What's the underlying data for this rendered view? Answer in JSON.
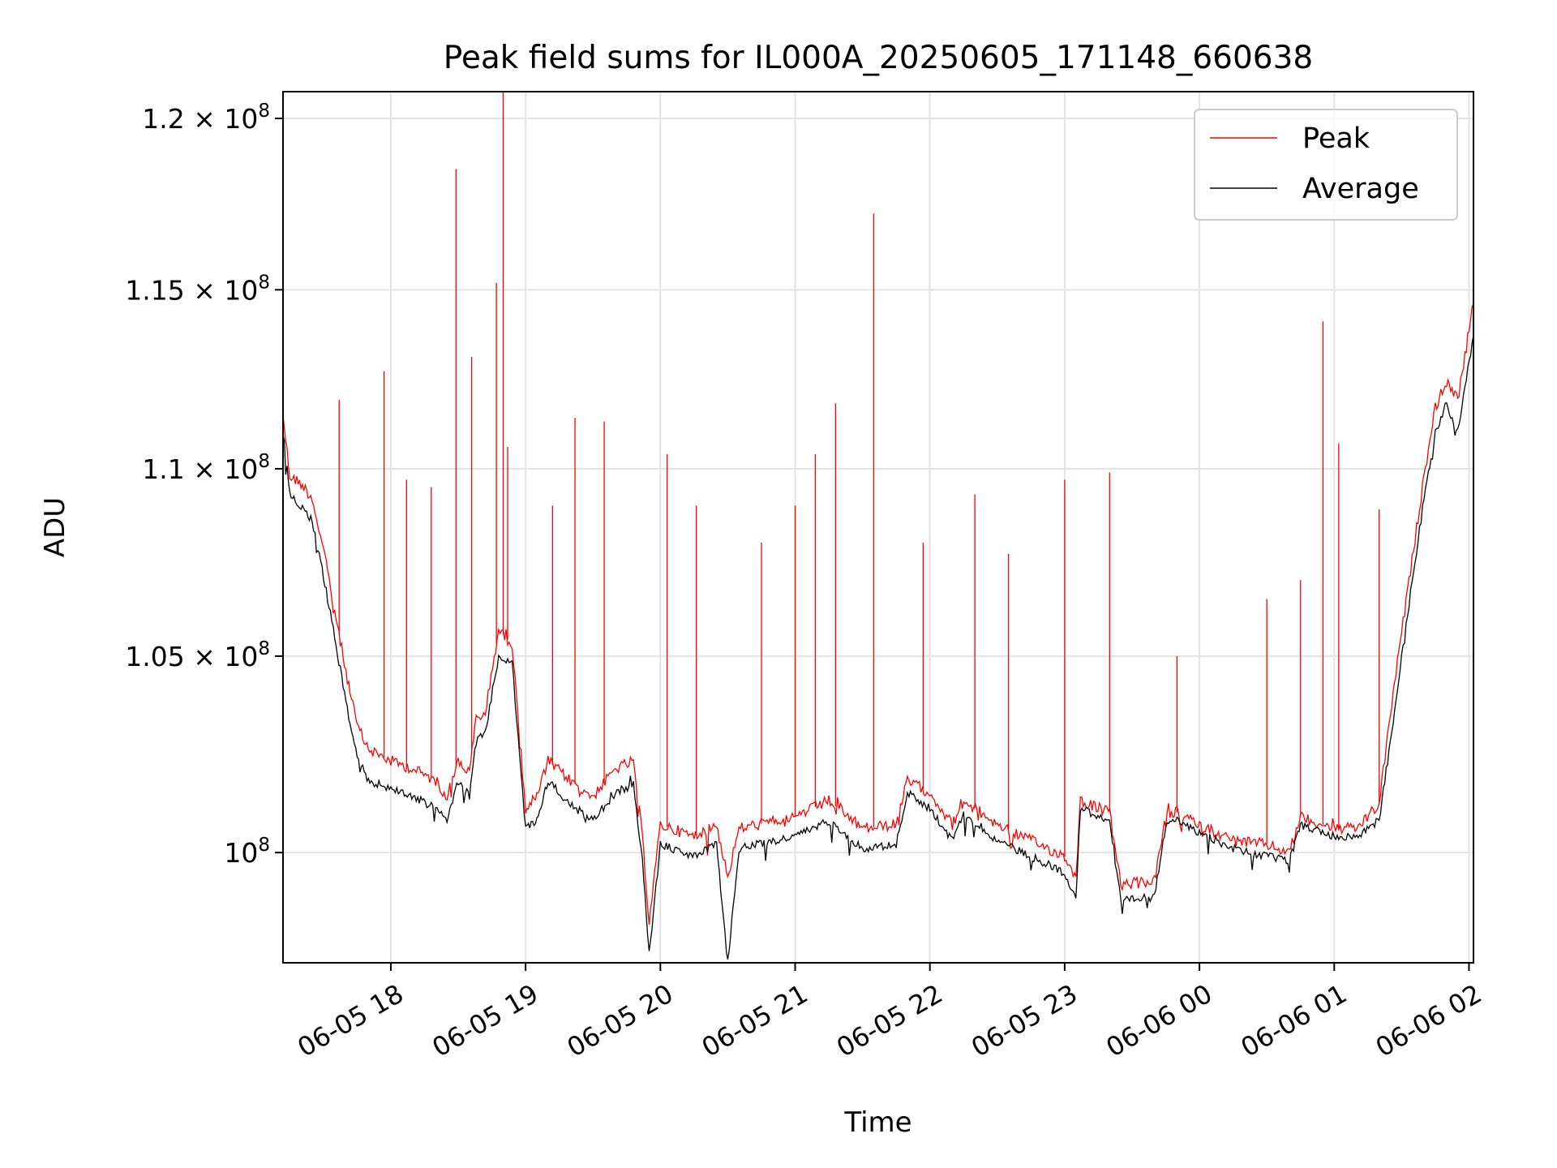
{
  "chart_data": {
    "type": "line",
    "title": "Peak field sums for IL000A_20250605_171148_660638",
    "xlabel": "Time",
    "ylabel": "ADU",
    "y_scale": "log",
    "xlim": [
      "2025-06-05T17:12",
      "2025-06-06T02:02"
    ],
    "ylim": [
      97300000,
      120800000
    ],
    "grid": true,
    "legend_position": "top-right",
    "x_ticks": [
      {
        "t": "2025-06-05T18:00",
        "label": "06-05 18"
      },
      {
        "t": "2025-06-05T19:00",
        "label": "06-05 19"
      },
      {
        "t": "2025-06-05T20:00",
        "label": "06-05 20"
      },
      {
        "t": "2025-06-05T21:00",
        "label": "06-05 21"
      },
      {
        "t": "2025-06-05T22:00",
        "label": "06-05 22"
      },
      {
        "t": "2025-06-05T23:00",
        "label": "06-05 23"
      },
      {
        "t": "2025-06-06T00:00",
        "label": "06-06 00"
      },
      {
        "t": "2025-06-06T01:00",
        "label": "06-06 01"
      },
      {
        "t": "2025-06-06T02:00",
        "label": "06-06 02"
      }
    ],
    "y_ticks": [
      {
        "value": 100000000,
        "mant": "10",
        "exp": "8"
      },
      {
        "value": 105000000,
        "mant": "1.05 × 10",
        "exp": "8"
      },
      {
        "value": 110000000,
        "mant": "1.1 × 10",
        "exp": "8"
      },
      {
        "value": 115000000,
        "mant": "1.15 × 10",
        "exp": "8"
      },
      {
        "value": 120000000,
        "mant": "1.2 × 10",
        "exp": "8"
      }
    ],
    "series": [
      {
        "name": "Peak",
        "color": "#ff0000",
        "baseline": [
          [
            "2025-06-05T17:12",
            111500000
          ],
          [
            "2025-06-05T17:15",
            109800000
          ],
          [
            "2025-06-05T17:20",
            109600000
          ],
          [
            "2025-06-05T17:25",
            109200000
          ],
          [
            "2025-06-05T17:30",
            107800000
          ],
          [
            "2025-06-05T17:35",
            106200000
          ],
          [
            "2025-06-05T17:40",
            104600000
          ],
          [
            "2025-06-05T17:45",
            103200000
          ],
          [
            "2025-06-05T17:50",
            102600000
          ],
          [
            "2025-06-05T18:00",
            102300000
          ],
          [
            "2025-06-05T18:10",
            102100000
          ],
          [
            "2025-06-05T18:20",
            101800000
          ],
          [
            "2025-06-05T18:25",
            101400000
          ],
          [
            "2025-06-05T18:30",
            102300000
          ],
          [
            "2025-06-05T18:35",
            102000000
          ],
          [
            "2025-06-05T18:38",
            103400000
          ],
          [
            "2025-06-05T18:42",
            103500000
          ],
          [
            "2025-06-05T18:48",
            105700000
          ],
          [
            "2025-06-05T18:54",
            105300000
          ],
          [
            "2025-06-05T19:00",
            101100000
          ],
          [
            "2025-06-05T19:05",
            101400000
          ],
          [
            "2025-06-05T19:10",
            102300000
          ],
          [
            "2025-06-05T19:20",
            101800000
          ],
          [
            "2025-06-05T19:30",
            101400000
          ],
          [
            "2025-06-05T19:40",
            102100000
          ],
          [
            "2025-06-05T19:48",
            102300000
          ],
          [
            "2025-06-05T19:52",
            100400000
          ],
          [
            "2025-06-05T19:55",
            98300000
          ],
          [
            "2025-06-05T20:00",
            100700000
          ],
          [
            "2025-06-05T20:15",
            100400000
          ],
          [
            "2025-06-05T20:25",
            100700000
          ],
          [
            "2025-06-05T20:30",
            99400000
          ],
          [
            "2025-06-05T20:35",
            100600000
          ],
          [
            "2025-06-05T21:00",
            100900000
          ],
          [
            "2025-06-05T21:15",
            101300000
          ],
          [
            "2025-06-05T21:30",
            100600000
          ],
          [
            "2025-06-05T21:45",
            100700000
          ],
          [
            "2025-06-05T21:50",
            101800000
          ],
          [
            "2025-06-05T22:00",
            101500000
          ],
          [
            "2025-06-05T22:10",
            100700000
          ],
          [
            "2025-06-05T22:15",
            101300000
          ],
          [
            "2025-06-05T22:30",
            100700000
          ],
          [
            "2025-06-05T22:45",
            100300000
          ],
          [
            "2025-06-05T23:00",
            99900000
          ],
          [
            "2025-06-05T23:05",
            99400000
          ],
          [
            "2025-06-05T23:07",
            101300000
          ],
          [
            "2025-06-05T23:20",
            101000000
          ],
          [
            "2025-06-05T23:25",
            99200000
          ],
          [
            "2025-06-05T23:40",
            99300000
          ],
          [
            "2025-06-05T23:45",
            100900000
          ],
          [
            "2025-06-05T23:50",
            101000000
          ],
          [
            "2025-06-06T00:00",
            100700000
          ],
          [
            "2025-06-06T00:15",
            100300000
          ],
          [
            "2025-06-06T00:30",
            100200000
          ],
          [
            "2025-06-06T00:40",
            100000000
          ],
          [
            "2025-06-06T00:45",
            100900000
          ],
          [
            "2025-06-06T01:00",
            100600000
          ],
          [
            "2025-06-06T01:10",
            100600000
          ],
          [
            "2025-06-06T01:20",
            101200000
          ],
          [
            "2025-06-06T01:25",
            103500000
          ],
          [
            "2025-06-06T01:30",
            105600000
          ],
          [
            "2025-06-06T01:40",
            109800000
          ],
          [
            "2025-06-06T01:45",
            111700000
          ],
          [
            "2025-06-06T01:50",
            112400000
          ],
          [
            "2025-06-06T01:55",
            111900000
          ],
          [
            "2025-06-06T02:02",
            114600000
          ]
        ],
        "spikes": [
          [
            "2025-06-05T17:37",
            111900000
          ],
          [
            "2025-06-05T17:57",
            112700000
          ],
          [
            "2025-06-05T18:07",
            109700000
          ],
          [
            "2025-06-05T18:18",
            109500000
          ],
          [
            "2025-06-05T18:29",
            118500000
          ],
          [
            "2025-06-05T18:36",
            113100000
          ],
          [
            "2025-06-05T18:47",
            115200000
          ],
          [
            "2025-06-05T18:50",
            120800000
          ],
          [
            "2025-06-05T18:52",
            110600000
          ],
          [
            "2025-06-05T19:12",
            109000000
          ],
          [
            "2025-06-05T19:22",
            111400000
          ],
          [
            "2025-06-05T19:35",
            111300000
          ],
          [
            "2025-06-05T20:03",
            110400000
          ],
          [
            "2025-06-05T20:16",
            109000000
          ],
          [
            "2025-06-05T20:45",
            108000000
          ],
          [
            "2025-06-05T21:00",
            109000000
          ],
          [
            "2025-06-05T21:09",
            110400000
          ],
          [
            "2025-06-05T21:18",
            111800000
          ],
          [
            "2025-06-05T21:35",
            117200000
          ],
          [
            "2025-06-05T21:57",
            108000000
          ],
          [
            "2025-06-05T22:20",
            109300000
          ],
          [
            "2025-06-05T22:35",
            107700000
          ],
          [
            "2025-06-05T23:00",
            109700000
          ],
          [
            "2025-06-05T23:20",
            109900000
          ],
          [
            "2025-06-05T23:50",
            105000000
          ],
          [
            "2025-06-06T00:30",
            106500000
          ],
          [
            "2025-06-06T00:45",
            107000000
          ],
          [
            "2025-06-06T00:55",
            114100000
          ],
          [
            "2025-06-06T01:02",
            110700000
          ],
          [
            "2025-06-06T01:20",
            108900000
          ]
        ]
      },
      {
        "name": "Average",
        "color": "#000000",
        "baseline": [
          [
            "2025-06-05T17:12",
            111000000
          ],
          [
            "2025-06-05T17:15",
            109300000
          ],
          [
            "2025-06-05T17:20",
            109000000
          ],
          [
            "2025-06-05T17:25",
            108600000
          ],
          [
            "2025-06-05T17:30",
            107100000
          ],
          [
            "2025-06-05T17:35",
            105500000
          ],
          [
            "2025-06-05T17:40",
            103800000
          ],
          [
            "2025-06-05T17:45",
            102400000
          ],
          [
            "2025-06-05T17:50",
            101800000
          ],
          [
            "2025-06-05T18:00",
            101600000
          ],
          [
            "2025-06-05T18:10",
            101400000
          ],
          [
            "2025-06-05T18:20",
            101100000
          ],
          [
            "2025-06-05T18:25",
            100800000
          ],
          [
            "2025-06-05T18:30",
            101800000
          ],
          [
            "2025-06-05T18:35",
            101400000
          ],
          [
            "2025-06-05T18:38",
            102800000
          ],
          [
            "2025-06-05T18:42",
            103000000
          ],
          [
            "2025-06-05T18:48",
            105000000
          ],
          [
            "2025-06-05T18:54",
            104800000
          ],
          [
            "2025-06-05T19:00",
            100600000
          ],
          [
            "2025-06-05T19:05",
            100800000
          ],
          [
            "2025-06-05T19:10",
            101800000
          ],
          [
            "2025-06-05T19:20",
            101200000
          ],
          [
            "2025-06-05T19:30",
            100800000
          ],
          [
            "2025-06-05T19:40",
            101500000
          ],
          [
            "2025-06-05T19:48",
            101700000
          ],
          [
            "2025-06-05T19:52",
            99800000
          ],
          [
            "2025-06-05T19:55",
            97500000
          ],
          [
            "2025-06-05T20:00",
            100200000
          ],
          [
            "2025-06-05T20:15",
            99900000
          ],
          [
            "2025-06-05T20:25",
            100200000
          ],
          [
            "2025-06-05T20:30",
            97300000
          ],
          [
            "2025-06-05T20:35",
            100100000
          ],
          [
            "2025-06-05T21:00",
            100400000
          ],
          [
            "2025-06-05T21:15",
            100800000
          ],
          [
            "2025-06-05T21:30",
            100100000
          ],
          [
            "2025-06-05T21:45",
            100200000
          ],
          [
            "2025-06-05T21:50",
            101500000
          ],
          [
            "2025-06-05T22:00",
            101100000
          ],
          [
            "2025-06-05T22:10",
            100300000
          ],
          [
            "2025-06-05T22:15",
            101000000
          ],
          [
            "2025-06-05T22:30",
            100300000
          ],
          [
            "2025-06-05T22:45",
            99900000
          ],
          [
            "2025-06-05T23:00",
            99500000
          ],
          [
            "2025-06-05T23:05",
            98900000
          ],
          [
            "2025-06-05T23:07",
            101100000
          ],
          [
            "2025-06-05T23:20",
            100800000
          ],
          [
            "2025-06-05T23:25",
            98800000
          ],
          [
            "2025-06-05T23:40",
            98900000
          ],
          [
            "2025-06-05T23:45",
            100700000
          ],
          [
            "2025-06-05T23:50",
            100800000
          ],
          [
            "2025-06-06T00:00",
            100500000
          ],
          [
            "2025-06-06T00:15",
            100100000
          ],
          [
            "2025-06-06T00:30",
            99900000
          ],
          [
            "2025-06-06T00:40",
            99800000
          ],
          [
            "2025-06-06T00:45",
            100700000
          ],
          [
            "2025-06-06T01:00",
            100400000
          ],
          [
            "2025-06-06T01:10",
            100400000
          ],
          [
            "2025-06-06T01:20",
            100800000
          ],
          [
            "2025-06-06T01:25",
            102800000
          ],
          [
            "2025-06-06T01:30",
            105000000
          ],
          [
            "2025-06-06T01:40",
            109200000
          ],
          [
            "2025-06-06T01:45",
            111000000
          ],
          [
            "2025-06-06T01:50",
            111800000
          ],
          [
            "2025-06-06T01:55",
            111000000
          ],
          [
            "2025-06-06T02:02",
            113700000
          ]
        ]
      }
    ]
  }
}
